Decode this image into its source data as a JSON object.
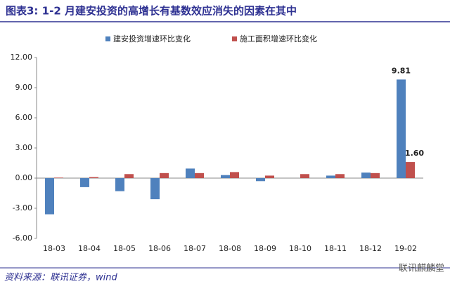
{
  "chart_data": {
    "type": "bar",
    "title": "图表3:  1-2 月建安投资的高增长有基数效应消失的因素在其中",
    "source": "资料来源：联讯证券，wind",
    "watermark": "联讯麒麟堂",
    "categories": [
      "18-03",
      "18-04",
      "18-05",
      "18-06",
      "18-07",
      "18-08",
      "18-09",
      "18-10",
      "18-11",
      "18-12",
      "19-02"
    ],
    "series": [
      {
        "name": "建安投资增速环比变化",
        "color": "#4f81bd",
        "values": [
          -3.6,
          -0.9,
          -1.3,
          -2.1,
          0.95,
          0.3,
          -0.3,
          0,
          0.25,
          0.55,
          9.81
        ],
        "value_labels": [
          null,
          null,
          null,
          null,
          null,
          null,
          null,
          null,
          null,
          null,
          "9.81"
        ]
      },
      {
        "name": "施工面积增速环比变化",
        "color": "#c0504d",
        "values": [
          0.05,
          0.1,
          0.4,
          0.5,
          0.5,
          0.6,
          0.25,
          0.4,
          0.4,
          0.5,
          1.6
        ],
        "value_labels": [
          null,
          null,
          null,
          null,
          null,
          null,
          null,
          null,
          null,
          null,
          "1.60"
        ]
      }
    ],
    "ylim": [
      -6,
      12
    ],
    "yticks": [
      {
        "value": -6,
        "label": "-6.00"
      },
      {
        "value": -3,
        "label": "-3.00"
      },
      {
        "value": 0,
        "label": "0.00"
      },
      {
        "value": 3,
        "label": "3.00"
      },
      {
        "value": 6,
        "label": "6.00"
      },
      {
        "value": 9,
        "label": "9.00"
      },
      {
        "value": 12,
        "label": "12.00"
      }
    ],
    "legend": "top"
  }
}
